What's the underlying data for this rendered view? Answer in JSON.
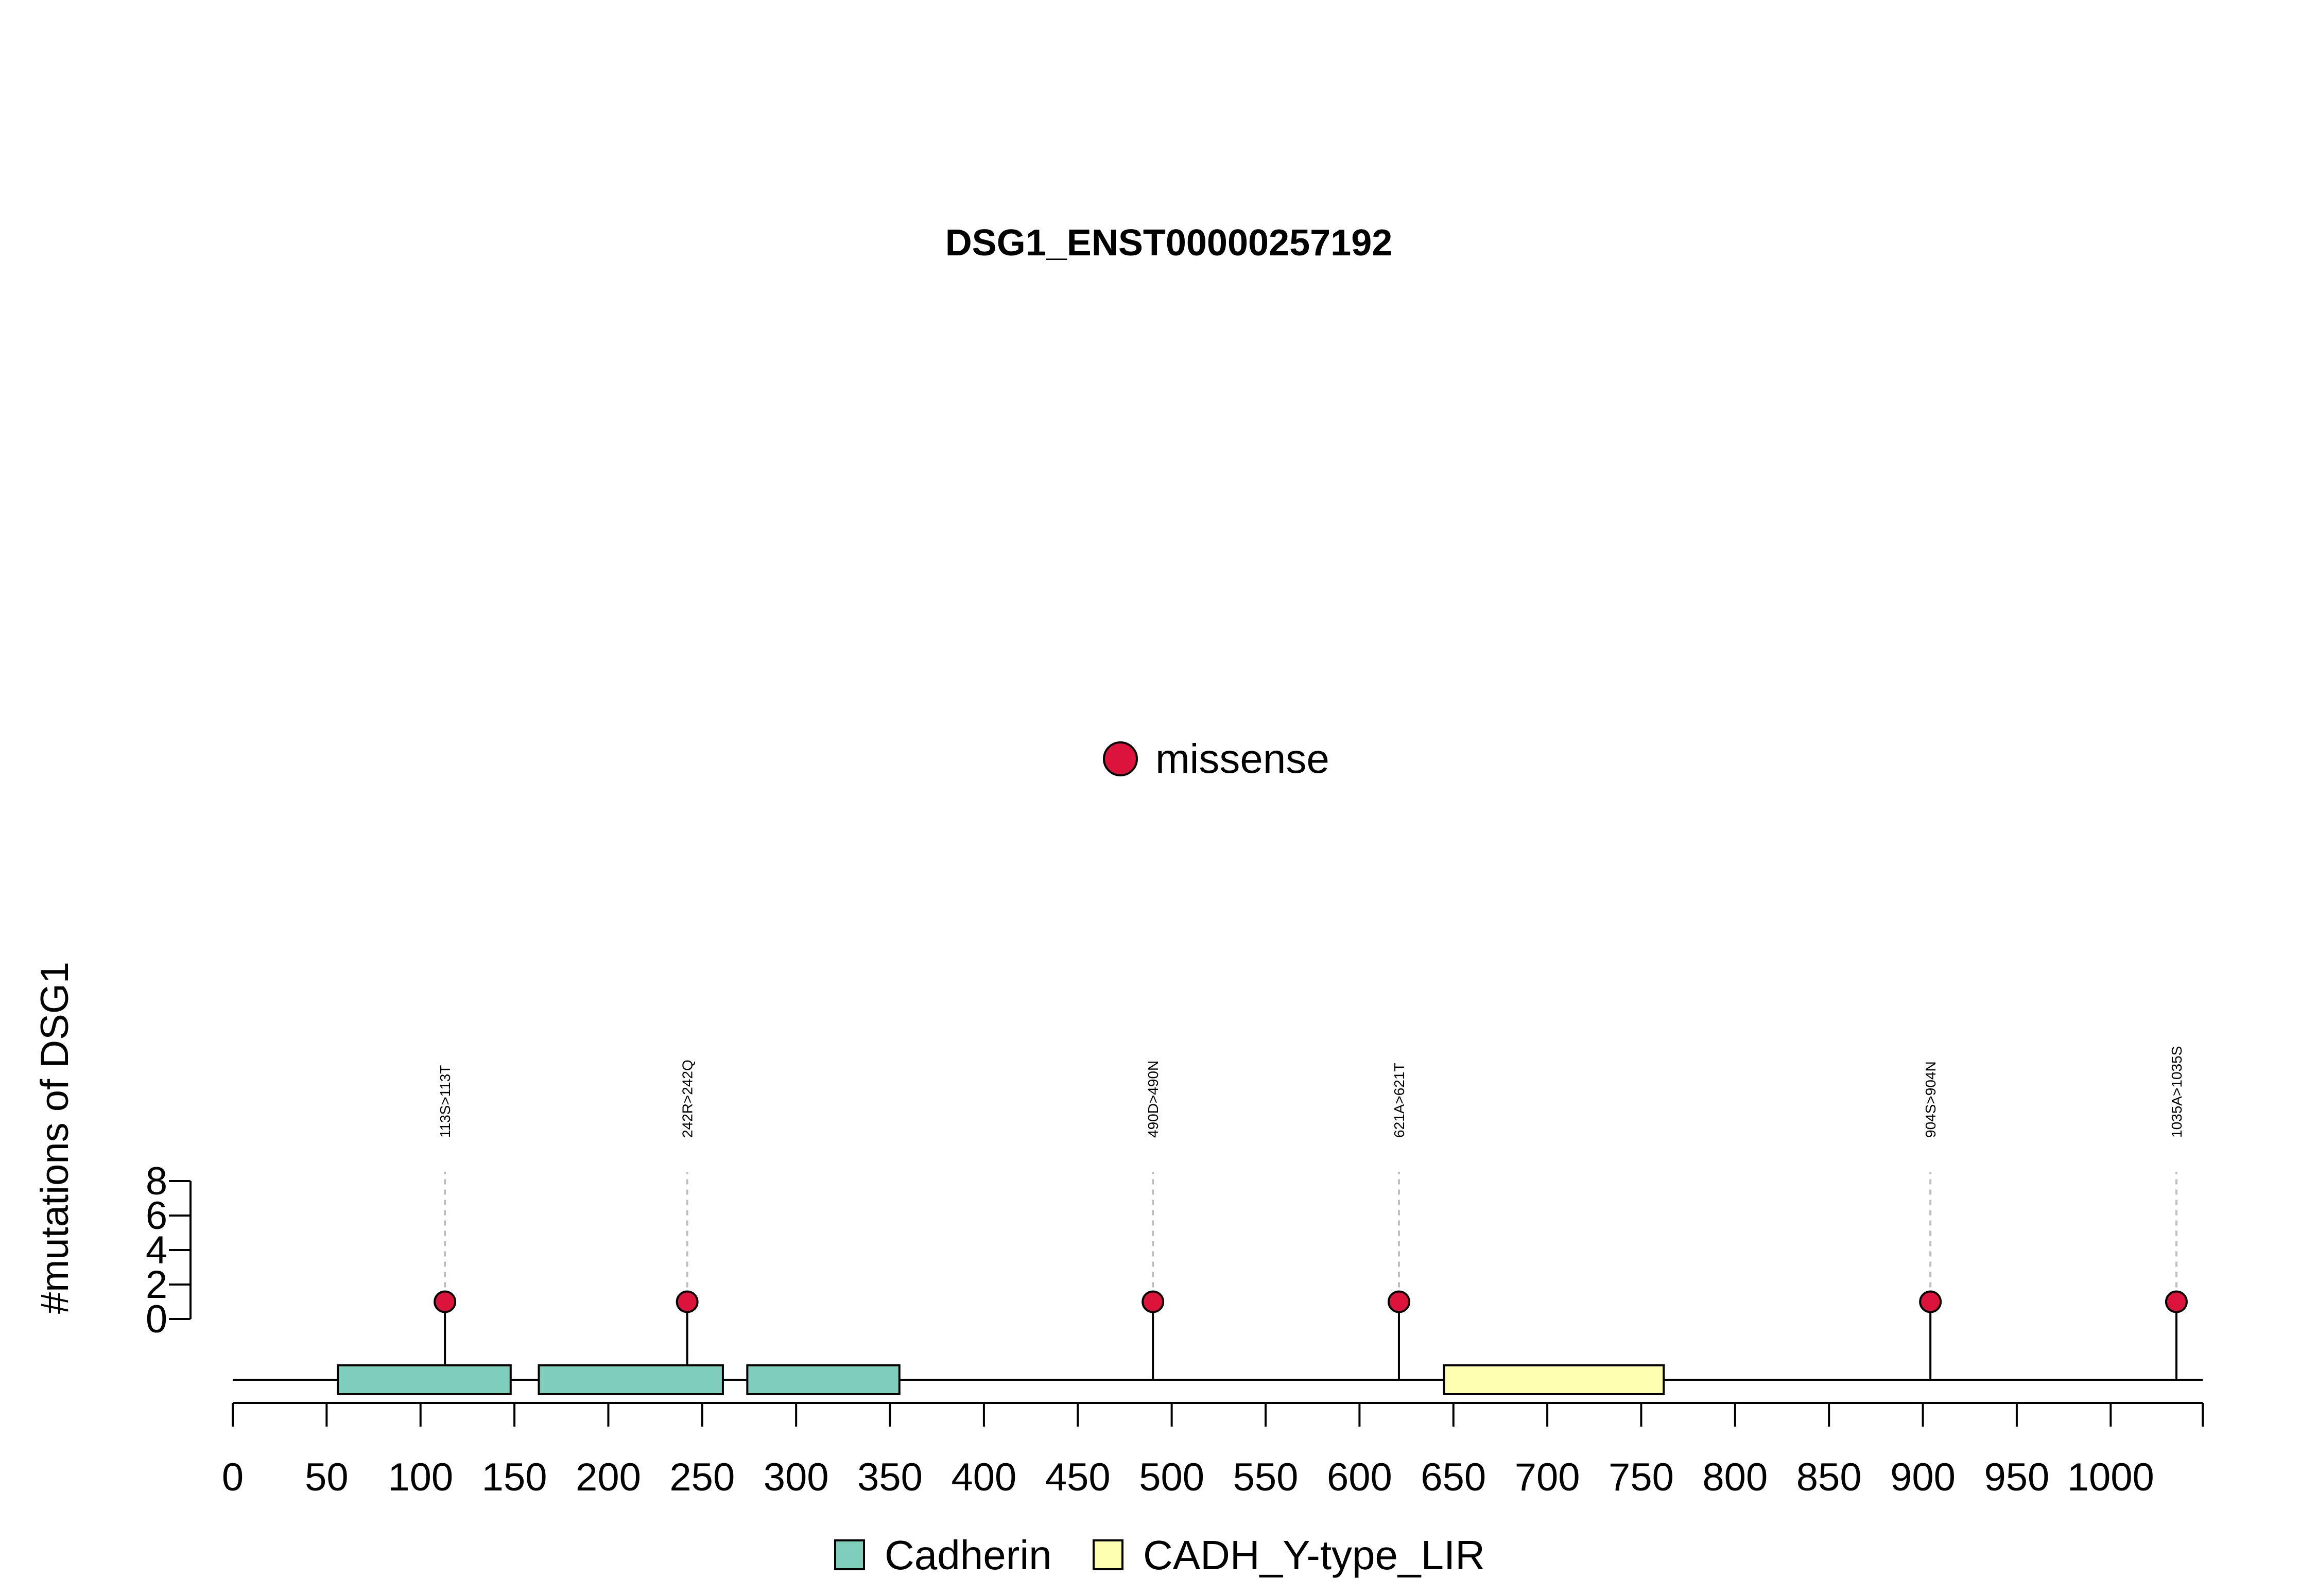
{
  "chart_data": {
    "type": "lollipop",
    "title": "DSG1_ENST00000257192",
    "ylabel": "#mutations of DSG1",
    "xlabel": "",
    "x_ticks": [
      0,
      50,
      100,
      150,
      200,
      250,
      300,
      350,
      400,
      450,
      500,
      550,
      600,
      650,
      700,
      750,
      800,
      850,
      900,
      950,
      1000
    ],
    "xlim": [
      0,
      1049
    ],
    "y_ticks": [
      0,
      2,
      4,
      6,
      8
    ],
    "ylim": [
      0,
      8
    ],
    "legend_top": {
      "placement": "top-center",
      "items": [
        {
          "label": "missense",
          "color": "#DC143C"
        }
      ]
    },
    "legend_bottom": {
      "placement": "bottom-center",
      "items": [
        {
          "label": "Cadherin",
          "color": "#7FCDBB"
        },
        {
          "label": "CADH_Y-type_LIR",
          "color": "#FFFFB2"
        }
      ]
    },
    "domains": [
      {
        "name": "Cadherin",
        "start": 56,
        "end": 148,
        "color": "#7FCDBB"
      },
      {
        "name": "Cadherin",
        "start": 163,
        "end": 261,
        "color": "#7FCDBB"
      },
      {
        "name": "Cadherin",
        "start": 274,
        "end": 355,
        "color": "#7FCDBB"
      },
      {
        "name": "CADH_Y-type_LIR",
        "start": 645,
        "end": 762,
        "color": "#FFFFB2"
      }
    ],
    "mutations": [
      {
        "label": "113S>113T",
        "position": 113,
        "count": 1,
        "type": "missense",
        "color": "#DC143C"
      },
      {
        "label": "242R>242Q",
        "position": 242,
        "count": 1,
        "type": "missense",
        "color": "#DC143C"
      },
      {
        "label": "490D>490N",
        "position": 490,
        "count": 1,
        "type": "missense",
        "color": "#DC143C"
      },
      {
        "label": "621A>621T",
        "position": 621,
        "count": 1,
        "type": "missense",
        "color": "#DC143C"
      },
      {
        "label": "904S>904N",
        "position": 904,
        "count": 1,
        "type": "missense",
        "color": "#DC143C"
      },
      {
        "label": "1035A>1035S",
        "position": 1035,
        "count": 1,
        "type": "missense",
        "color": "#DC143C"
      }
    ]
  }
}
